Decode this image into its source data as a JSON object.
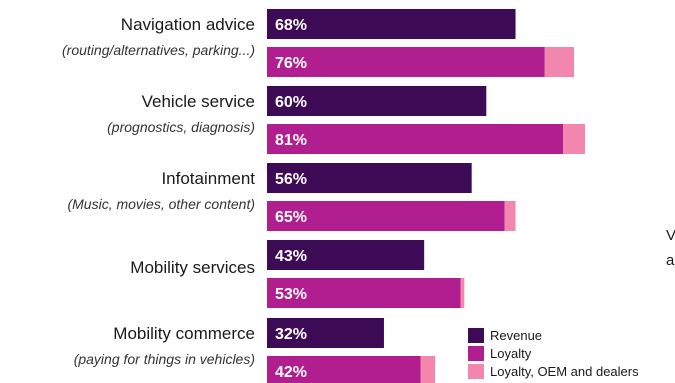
{
  "chart_data": {
    "type": "bar",
    "orientation": "horizontal",
    "categories": [
      {
        "name": "Navigation advice",
        "subtitle": "(routing/alternatives, parking...)"
      },
      {
        "name": "Vehicle service",
        "subtitle": "(prognostics, diagnosis)"
      },
      {
        "name": "Infotainment",
        "subtitle": "(Music, movies, other content)"
      },
      {
        "name": "Mobility services",
        "subtitle": ""
      },
      {
        "name": "Mobility commerce",
        "subtitle": "(paying for things in vehicles)"
      }
    ],
    "series": [
      {
        "name": "Revenue",
        "color": "#3d0b55",
        "values": [
          68,
          60,
          56,
          43,
          32
        ],
        "labels": [
          "68%",
          "60%",
          "56%",
          "43%",
          "32%"
        ]
      },
      {
        "name": "Loyalty",
        "color": "#b01e8f",
        "values": [
          76,
          81,
          65,
          53,
          42
        ],
        "labels": [
          "76%",
          "81%",
          "65%",
          "53%",
          "42%"
        ]
      },
      {
        "name": "Loyalty, OEM and dealers",
        "color": "#f386ad",
        "stacked_on": "Loyalty",
        "values": [
          8,
          6,
          3,
          1,
          4
        ]
      }
    ],
    "xlim": [
      0,
      100
    ],
    "grid": false,
    "legend_position": "bottom-right",
    "edge_text": [
      "V",
      "a"
    ]
  }
}
